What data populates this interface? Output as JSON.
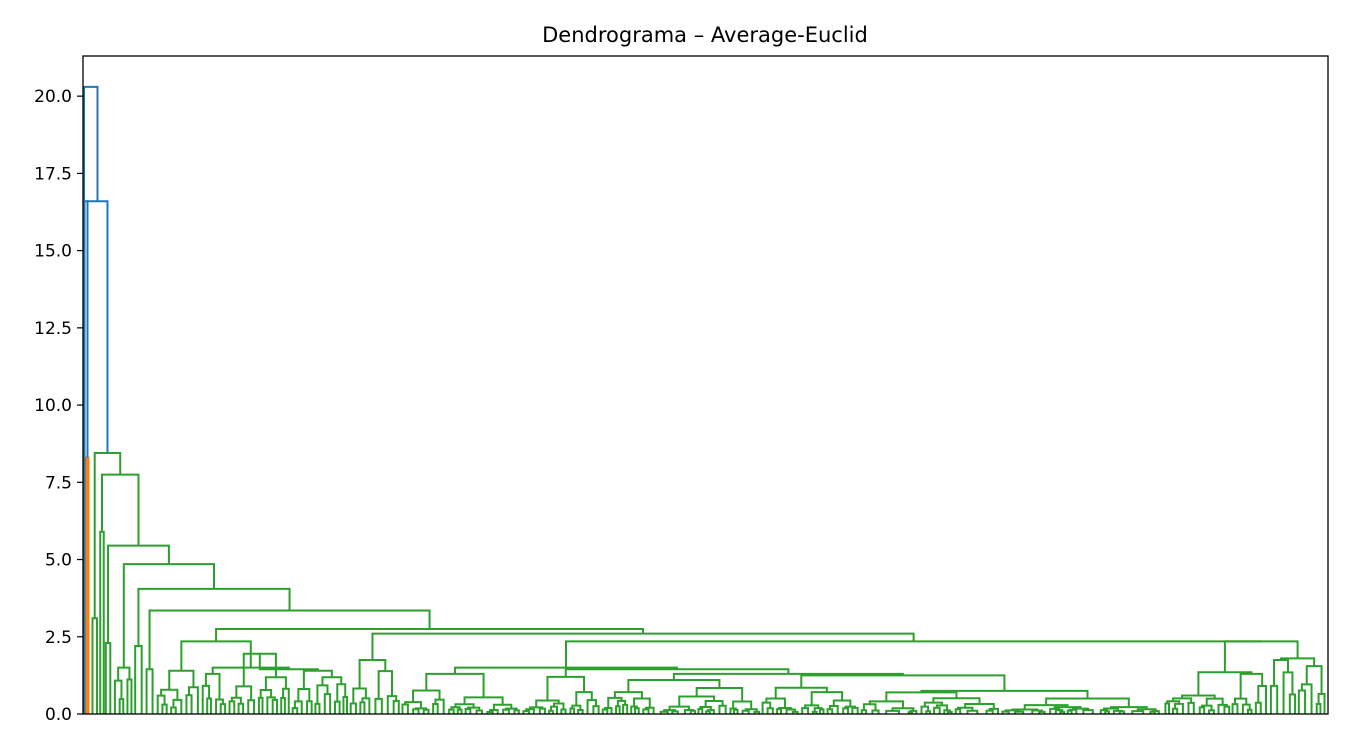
{
  "chart_data": {
    "type": "dendrogram",
    "title": "Dendrograma – Average-Euclid",
    "xlabel": "",
    "ylabel": "",
    "ylim": [
      0,
      21.3
    ],
    "yticks": [
      "0.0",
      "2.5",
      "5.0",
      "7.5",
      "10.0",
      "12.5",
      "15.0",
      "17.5",
      "20.0"
    ],
    "ytick_values": [
      0,
      2.5,
      5,
      7.5,
      10,
      12.5,
      15,
      17.5,
      20
    ],
    "x_tick_labels_shown": false,
    "grid": false,
    "colors": {
      "above_threshold": "#1f77b4",
      "cluster_1": "#ff7f0e",
      "cluster_2": "#2ca02c"
    },
    "top_merges": [
      {
        "height": 20.3,
        "color": "#1f77b4"
      },
      {
        "height": 16.6,
        "color": "#1f77b4"
      },
      {
        "height": 8.3,
        "color": "#ff7f0e"
      },
      {
        "height": 8.45,
        "color": "#2ca02c"
      },
      {
        "height": 7.75,
        "color": "#2ca02c"
      },
      {
        "height": 5.45,
        "color": "#2ca02c"
      },
      {
        "height": 4.85,
        "color": "#2ca02c"
      },
      {
        "height": 4.05,
        "color": "#2ca02c"
      },
      {
        "height": 3.35,
        "color": "#2ca02c"
      },
      {
        "height": 2.75,
        "color": "#2ca02c"
      },
      {
        "height": 2.6,
        "color": "#2ca02c"
      },
      {
        "height": 2.35,
        "color": "#2ca02c"
      },
      {
        "height": 1.5,
        "color": "#2ca02c"
      }
    ]
  }
}
